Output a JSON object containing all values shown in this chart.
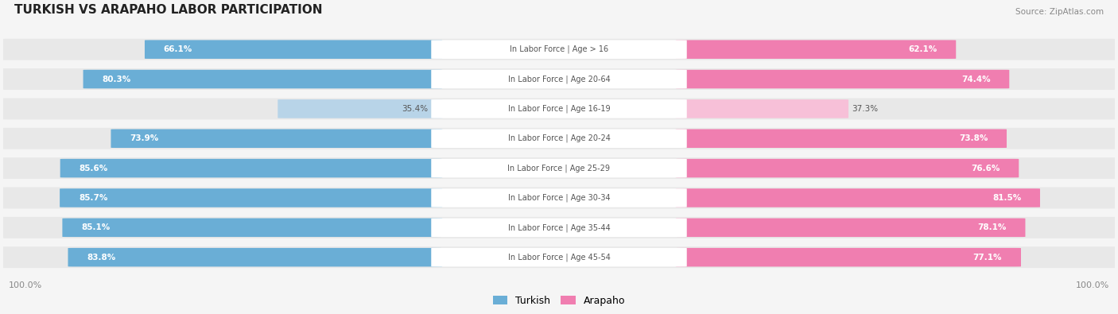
{
  "title": "TURKISH VS ARAPAHO LABOR PARTICIPATION",
  "source": "Source: ZipAtlas.com",
  "categories": [
    "In Labor Force | Age > 16",
    "In Labor Force | Age 20-64",
    "In Labor Force | Age 16-19",
    "In Labor Force | Age 20-24",
    "In Labor Force | Age 25-29",
    "In Labor Force | Age 30-34",
    "In Labor Force | Age 35-44",
    "In Labor Force | Age 45-54"
  ],
  "turkish": [
    66.1,
    80.3,
    35.4,
    73.9,
    85.6,
    85.7,
    85.1,
    83.8
  ],
  "arapaho": [
    62.1,
    74.4,
    37.3,
    73.8,
    76.6,
    81.5,
    78.1,
    77.1
  ],
  "turkish_color_full": "#6aaed6",
  "turkish_color_light": "#b8d4e8",
  "arapaho_color_full": "#f07eb0",
  "arapaho_color_light": "#f7c0d8",
  "bg_color": "#f5f5f5",
  "max_val": 100.0,
  "threshold": 50.0
}
